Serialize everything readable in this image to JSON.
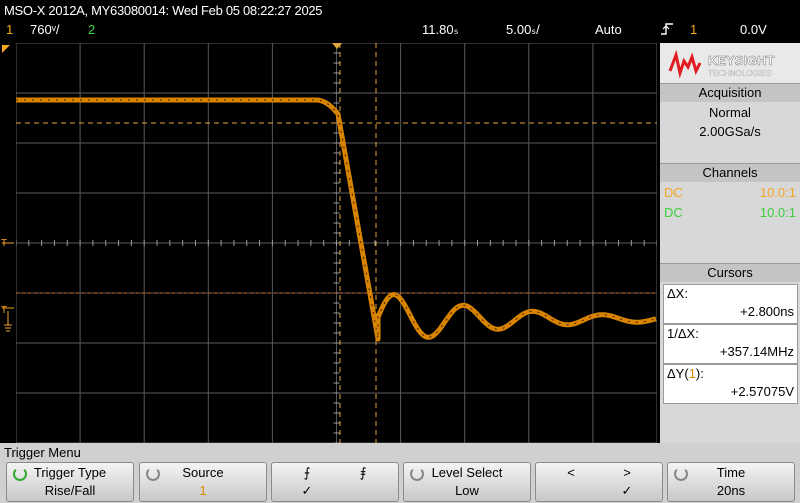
{
  "header": {
    "title": "MSO-X 2012A, MY63080014: Wed Feb 05 08:22:27 2025",
    "ch1_num": "1",
    "ch1_scale": "760ᵛ/",
    "ch2_num": "2",
    "time_pos": "11.80ₛ",
    "time_scale": "5.00ₛ/",
    "trig_mode": "Auto",
    "trig_symbol": "෴",
    "trig_src": "1",
    "trig_level": "0.0V"
  },
  "brand": {
    "name": "KEYSIGHT",
    "sub": "TECHNOLOGIES"
  },
  "acquisition": {
    "title": "Acquisition",
    "mode": "Normal",
    "rate": "2.00GSa/s"
  },
  "channels": {
    "title": "Channels",
    "items": [
      {
        "coupling": "DC",
        "probe": "10.0:1",
        "color": "#f5a623"
      },
      {
        "coupling": "DC",
        "probe": "10.0:1",
        "color": "#3ccf3c"
      }
    ]
  },
  "cursors": {
    "title": "Cursors",
    "dx_label": "ΔX:",
    "dx_value": "+2.800ns",
    "inv_label": "1/ΔX:",
    "inv_value": "+357.14MHz",
    "dy_label_pre": "ΔY(",
    "dy_ch": "1",
    "dy_label_post": "):",
    "dy_value": "+2.57075V"
  },
  "menu": {
    "title": "Trigger Menu",
    "softkeys": [
      {
        "top": "Trigger Type",
        "bottom": "Rise/Fall"
      },
      {
        "top": "Source",
        "bottom": "1"
      },
      {
        "top_left": "⨍",
        "top_right": "⨎",
        "bottom": "✓"
      },
      {
        "top": "Level Select",
        "bottom": "Low"
      },
      {
        "top_left": "<",
        "top_right": ">",
        "bottom": "✓"
      },
      {
        "top": "Time",
        "bottom": "20ns"
      }
    ]
  },
  "colors": {
    "trace": "#d98400",
    "ch1": "#f5a623",
    "ch2": "#3ccf3c"
  }
}
